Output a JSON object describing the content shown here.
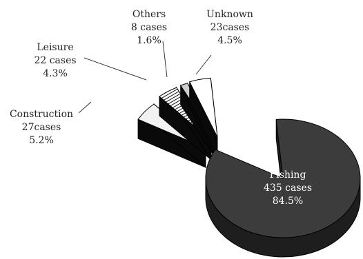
{
  "chart_data": {
    "type": "pie",
    "style": "3d-exploded",
    "categories": [
      "Fishing",
      "Construction",
      "Leisure",
      "Others",
      "Unknown"
    ],
    "values": [
      435,
      27,
      22,
      8,
      23
    ],
    "percentages": [
      84.5,
      5.2,
      4.3,
      1.6,
      4.5
    ],
    "slices": [
      {
        "name": "Fishing",
        "cases_text": "435 cases",
        "pct_text": "84.5%",
        "fill": "#3c3c3c"
      },
      {
        "name": "Construction",
        "cases_text": "27cases",
        "pct_text": "5.2%",
        "fill": "#f2f2f2"
      },
      {
        "name": "Leisure",
        "cases_text": "22 cases",
        "pct_text": "4.3%",
        "fill": "#141414"
      },
      {
        "name": "Others",
        "cases_text": "8 cases",
        "pct_text": "1.6%",
        "fill": "#cfcfcf"
      },
      {
        "name": "Unknown",
        "cases_text": "23cases",
        "pct_text": "4.5%",
        "fill": "#ffffff"
      }
    ],
    "edge_color": "#000000",
    "title": "",
    "legend": "none"
  }
}
